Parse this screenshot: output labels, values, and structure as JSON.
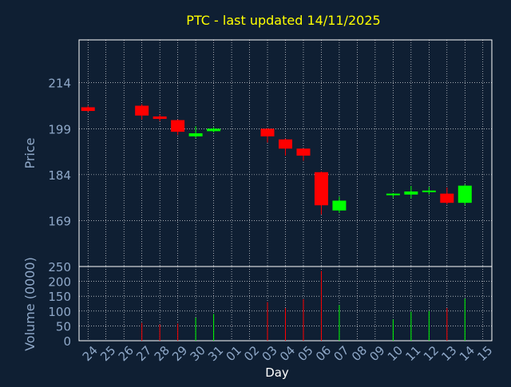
{
  "chart_data": {
    "type": "candlestick",
    "title": "PTC - last updated 14/11/2025",
    "xlabel": "Day",
    "price_panel": {
      "ylabel": "Price",
      "ylim": [
        154,
        228
      ],
      "yticks": [
        169,
        184,
        199,
        214
      ],
      "grid": true
    },
    "volume_panel": {
      "ylabel": "Volume (0000)",
      "ylim": [
        0,
        250
      ],
      "yticks": [
        0,
        50,
        100,
        150,
        200,
        250
      ],
      "grid": true
    },
    "x_labels": [
      "24",
      "25",
      "26",
      "27",
      "28",
      "29",
      "30",
      "31",
      "01",
      "02",
      "03",
      "04",
      "05",
      "06",
      "07",
      "08",
      "09",
      "10",
      "11",
      "12",
      "13",
      "14",
      "15"
    ],
    "candles": [
      {
        "day": "24",
        "open": 206.0,
        "high": 206.5,
        "low": 204.5,
        "close": 204.8,
        "volume": 0
      },
      {
        "day": "27",
        "open": 206.5,
        "high": 207.0,
        "low": 202.0,
        "close": 203.3,
        "volume": 60
      },
      {
        "day": "28",
        "open": 203.0,
        "high": 203.6,
        "low": 201.5,
        "close": 202.2,
        "volume": 55
      },
      {
        "day": "29",
        "open": 201.8,
        "high": 202.0,
        "low": 197.0,
        "close": 198.0,
        "volume": 58
      },
      {
        "day": "30",
        "open": 196.5,
        "high": 199.8,
        "low": 196.0,
        "close": 197.5,
        "volume": 78
      },
      {
        "day": "31",
        "open": 198.2,
        "high": 199.5,
        "low": 197.8,
        "close": 199.0,
        "volume": 90
      },
      {
        "day": "03",
        "open": 199.0,
        "high": 199.2,
        "low": 194.5,
        "close": 196.5,
        "volume": 130
      },
      {
        "day": "04",
        "open": 195.5,
        "high": 195.8,
        "low": 190.2,
        "close": 192.5,
        "volume": 110
      },
      {
        "day": "05",
        "open": 192.5,
        "high": 192.6,
        "low": 188.5,
        "close": 190.2,
        "volume": 140
      },
      {
        "day": "06",
        "open": 184.8,
        "high": 185.0,
        "low": 171.0,
        "close": 174.0,
        "volume": 235
      },
      {
        "day": "07",
        "open": 172.3,
        "high": 176.8,
        "low": 171.5,
        "close": 175.5,
        "volume": 120
      },
      {
        "day": "10",
        "open": 177.4,
        "high": 178.0,
        "low": 176.5,
        "close": 177.8,
        "volume": 72
      },
      {
        "day": "11",
        "open": 177.5,
        "high": 180.3,
        "low": 176.3,
        "close": 178.5,
        "volume": 98
      },
      {
        "day": "12",
        "open": 178.3,
        "high": 180.0,
        "low": 177.5,
        "close": 178.8,
        "volume": 100
      },
      {
        "day": "13",
        "open": 177.8,
        "high": 179.8,
        "low": 174.3,
        "close": 174.8,
        "volume": 110
      },
      {
        "day": "14",
        "open": 174.8,
        "high": 180.8,
        "low": 174.0,
        "close": 180.4,
        "volume": 142
      }
    ],
    "colors": {
      "up": "#00ff00",
      "down": "#ff0000",
      "background": "#0f1f33",
      "axis": "#ffffff",
      "grid": "#ffffff",
      "tick_text": "#8fa8c8",
      "title": "#ffff00"
    }
  }
}
